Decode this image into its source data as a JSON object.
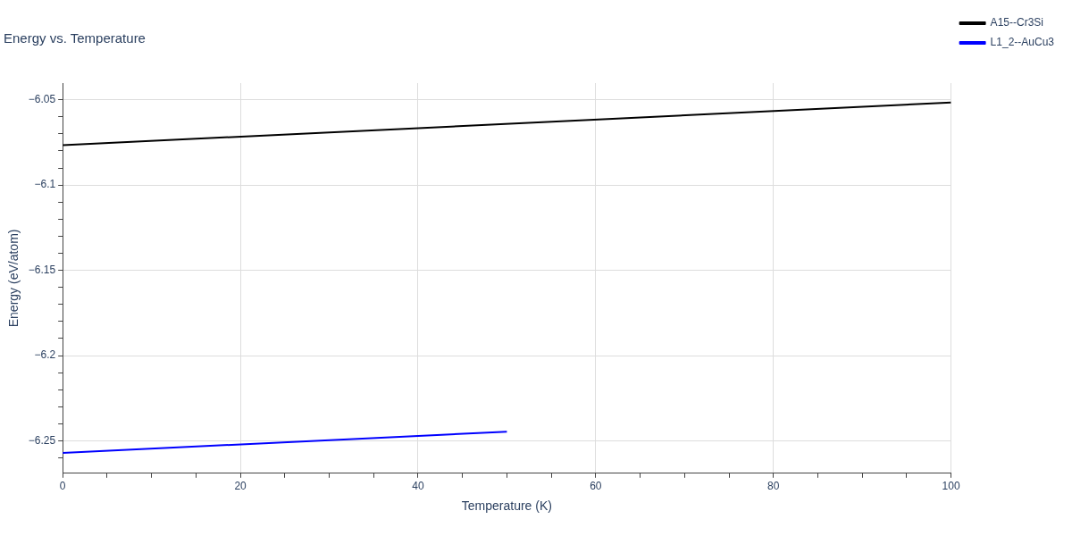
{
  "chart_data": {
    "type": "line",
    "title": "Energy vs. Temperature",
    "xlabel": "Temperature (K)",
    "ylabel": "Energy (eV/atom)",
    "series": [
      {
        "name": "A15--Cr3Si",
        "color": "#000000",
        "x": [
          0,
          100
        ],
        "values": [
          -6.0766,
          -6.0516
        ]
      },
      {
        "name": "L1_2--AuCu3",
        "color": "#0000ff",
        "x": [
          0,
          50
        ],
        "values": [
          -6.257,
          -6.2446
        ]
      }
    ],
    "xlim": [
      0,
      100
    ],
    "xticks": [
      0,
      {
        "value": 5,
        "label": null
      },
      {
        "value": 10,
        "label": null
      },
      {
        "value": 15,
        "label": null
      },
      20,
      {
        "value": 25,
        "label": null
      },
      {
        "value": 30,
        "label": null
      },
      {
        "value": 35,
        "label": null
      },
      40,
      {
        "value": 45,
        "label": null
      },
      {
        "value": 50,
        "label": null
      },
      {
        "value": 55,
        "label": null
      },
      60,
      {
        "value": 65,
        "label": null
      },
      {
        "value": 70,
        "label": null
      },
      {
        "value": 75,
        "label": null
      },
      80,
      {
        "value": 85,
        "label": null
      },
      {
        "value": 90,
        "label": null
      },
      {
        "value": 95,
        "label": null
      },
      100
    ],
    "ylim": [
      -6.269,
      -6.0402
    ],
    "yticks": [
      {
        "value": -6.26,
        "label": null
      },
      {
        "value": -6.25,
        "label": "−6.25"
      },
      {
        "value": -6.24,
        "label": null
      },
      {
        "value": -6.23,
        "label": null
      },
      {
        "value": -6.22,
        "label": null
      },
      {
        "value": -6.21,
        "label": null
      },
      {
        "value": -6.2,
        "label": "−6.2"
      },
      {
        "value": -6.19,
        "label": null
      },
      {
        "value": -6.18,
        "label": null
      },
      {
        "value": -6.17,
        "label": null
      },
      {
        "value": -6.16,
        "label": null
      },
      {
        "value": -6.15,
        "label": "−6.15"
      },
      {
        "value": -6.14,
        "label": null
      },
      {
        "value": -6.13,
        "label": null
      },
      {
        "value": -6.12,
        "label": null
      },
      {
        "value": -6.11,
        "label": null
      },
      {
        "value": -6.1,
        "label": "−6.1"
      },
      {
        "value": -6.09,
        "label": null
      },
      {
        "value": -6.08,
        "label": null
      },
      {
        "value": -6.07,
        "label": null
      },
      {
        "value": -6.06,
        "label": null
      },
      {
        "value": -6.05,
        "label": "−6.05"
      }
    ],
    "grid": true,
    "legend": "top right",
    "marker": "none",
    "line_style": "solid"
  }
}
